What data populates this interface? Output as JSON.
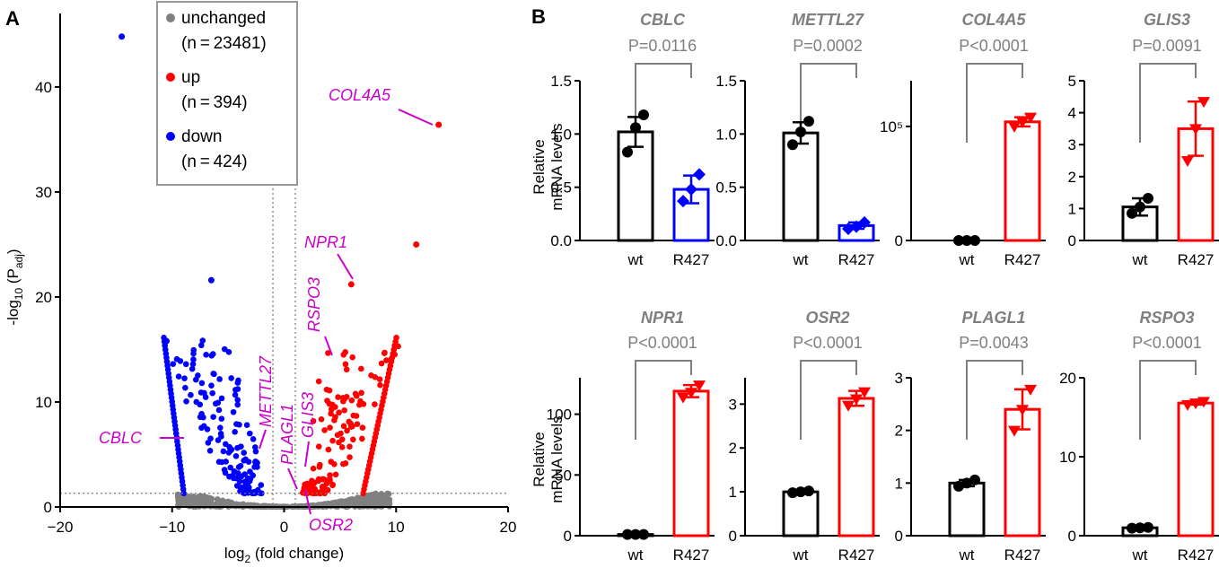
{
  "panel_a_letter": "A",
  "panel_b_letter": "B",
  "chart_data": [
    {
      "type": "scatter",
      "name": "volcano",
      "xlabel": "log2 (fold change)",
      "ylabel": "-log10 (Padj)",
      "xlim": [
        -20,
        20
      ],
      "ylim": [
        0,
        47
      ],
      "xticks": [
        "-20",
        "-10",
        "0",
        "10",
        "20"
      ],
      "yticks": [
        "0",
        "10",
        "20",
        "30",
        "40"
      ],
      "threshold_x": [
        -1,
        1
      ],
      "threshold_y": 1.3,
      "legend": [
        {
          "label": "unchanged",
          "n": "(n = 23481)",
          "color": "#808080"
        },
        {
          "label": "up",
          "n": "(n = 394)",
          "color": "#ff0000"
        },
        {
          "label": "down",
          "n": "(n = 424)",
          "color": "#0000ff"
        }
      ],
      "highlighted_points": [
        {
          "x": -14.5,
          "y": 44.8,
          "group": "down"
        },
        {
          "x": 13.8,
          "y": 36.4,
          "group": "up"
        },
        {
          "x": 11.8,
          "y": 25.0,
          "group": "up"
        },
        {
          "x": 6.0,
          "y": 21.2,
          "group": "up"
        },
        {
          "x": -6.5,
          "y": 21.6,
          "group": "down"
        },
        {
          "x": -10.5,
          "y": 15.8,
          "group": "down"
        }
      ],
      "annotations": [
        {
          "gene": "COL4A5",
          "x": 13.8,
          "y": 36.4
        },
        {
          "gene": "NPR1",
          "x": 6.0,
          "y": 21.2
        },
        {
          "gene": "RSPO3",
          "x": 4.2,
          "y": 14.2
        },
        {
          "gene": "GLIS3",
          "x": 1.8,
          "y": 4.5
        },
        {
          "gene": "PLAGL1",
          "x": 1.2,
          "y": 3.5
        },
        {
          "gene": "METTL27",
          "x": -2.5,
          "y": 5.0
        },
        {
          "gene": "CBLC",
          "x": -9.0,
          "y": 6.2
        },
        {
          "gene": "OSR2",
          "x": 1.6,
          "y": 2.0
        }
      ]
    },
    {
      "type": "bar",
      "name": "qPCR",
      "ylabel": "Relative mRNA levels",
      "categories": [
        "wt",
        "R427"
      ],
      "genes": [
        {
          "gene": "CBLC",
          "p": "P=0.0116",
          "ylim": [
            0,
            1.5
          ],
          "yticks": [
            "0.0",
            "0.5",
            "1.0",
            "1.5"
          ],
          "tick_values": [
            0,
            0.5,
            1.0,
            1.5
          ],
          "values": [
            1.02,
            0.48
          ],
          "err": [
            0.14,
            0.13
          ],
          "points": [
            [
              0.83,
              1.06,
              1.18
            ],
            [
              0.37,
              0.48,
              0.62
            ]
          ],
          "r427_color": "#0000ff",
          "log": false
        },
        {
          "gene": "METTL27",
          "p": "P=0.0002",
          "ylim": [
            0,
            1.5
          ],
          "yticks": [
            "0.0",
            "0.5",
            "1.0",
            "1.5"
          ],
          "tick_values": [
            0,
            0.5,
            1.0,
            1.5
          ],
          "values": [
            1.01,
            0.14
          ],
          "err": [
            0.1,
            0.03
          ],
          "points": [
            [
              0.9,
              1.02,
              1.12
            ],
            [
              0.11,
              0.13,
              0.17
            ]
          ],
          "r427_color": "#0000ff",
          "log": false
        },
        {
          "gene": "COL4A5",
          "p": "P<0.0001",
          "ylim": [
            0,
            140000
          ],
          "yticks": [
            "0",
            "10⁵"
          ],
          "tick_values": [
            0,
            100000
          ],
          "values": [
            0,
            104000
          ],
          "err": [
            0,
            4000
          ],
          "points": [
            [
              0,
              0,
              0
            ],
            [
              100000,
              104000,
              108000
            ]
          ],
          "r427_color": "#ff0000",
          "log": false
        },
        {
          "gene": "GLIS3",
          "p": "P=0.0091",
          "ylim": [
            0,
            5
          ],
          "yticks": [
            "0",
            "1",
            "2",
            "3",
            "4",
            "5"
          ],
          "tick_values": [
            0,
            1,
            2,
            3,
            4,
            5
          ],
          "values": [
            1.05,
            3.5
          ],
          "err": [
            0.27,
            0.85
          ],
          "points": [
            [
              0.85,
              1.05,
              1.32
            ],
            [
              2.5,
              3.5,
              4.35
            ]
          ],
          "r427_color": "#ff0000",
          "log": false
        },
        {
          "gene": "NPR1",
          "p": "P<0.0001",
          "ylim": [
            0,
            130
          ],
          "yticks": [
            "0",
            "50",
            "100"
          ],
          "tick_values": [
            0,
            50,
            100
          ],
          "values": [
            1,
            119
          ],
          "err": [
            0.3,
            5
          ],
          "points": [
            [
              1,
              1,
              1
            ],
            [
              114,
              118,
              124
            ]
          ],
          "r427_color": "#ff0000",
          "log": false
        },
        {
          "gene": "OSR2",
          "p": "P<0.0001",
          "ylim": [
            0,
            3.6
          ],
          "yticks": [
            "0",
            "1",
            "2",
            "3"
          ],
          "tick_values": [
            0,
            1,
            2,
            3
          ],
          "values": [
            1.0,
            3.13
          ],
          "err": [
            0.03,
            0.17
          ],
          "points": [
            [
              0.98,
              1.0,
              1.02
            ],
            [
              2.97,
              3.12,
              3.28
            ]
          ],
          "r427_color": "#ff0000",
          "log": false
        },
        {
          "gene": "PLAGL1",
          "p": "P=0.0043",
          "ylim": [
            0,
            3.0
          ],
          "yticks": [
            "0",
            "1",
            "2",
            "3"
          ],
          "tick_values": [
            0,
            1,
            2,
            3
          ],
          "values": [
            1.0,
            2.4
          ],
          "err": [
            0.06,
            0.38
          ],
          "points": [
            [
              0.94,
              1.0,
              1.06
            ],
            [
              2.0,
              2.4,
              2.78
            ]
          ],
          "r427_color": "#ff0000",
          "log": false
        },
        {
          "gene": "RSPO3",
          "p": "P<0.0001",
          "ylim": [
            0,
            20
          ],
          "yticks": [
            "0",
            "10",
            "20"
          ],
          "tick_values": [
            0,
            10,
            20
          ],
          "values": [
            1.0,
            16.8
          ],
          "err": [
            0.05,
            0.2
          ],
          "points": [
            [
              0.95,
              1.0,
              1.05
            ],
            [
              16.6,
              16.8,
              17.0
            ]
          ],
          "r427_color": "#ff0000",
          "log": false
        }
      ]
    }
  ]
}
